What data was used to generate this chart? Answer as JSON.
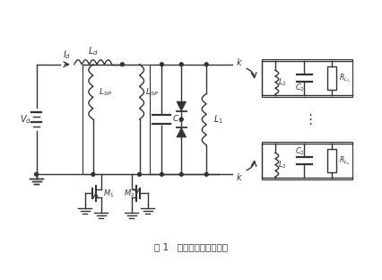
{
  "title": "图 1   非接触通用供电平台",
  "bg_color": "#ffffff",
  "line_color": "#333333",
  "fig_width": 4.26,
  "fig_height": 3.12,
  "dpi": 100
}
